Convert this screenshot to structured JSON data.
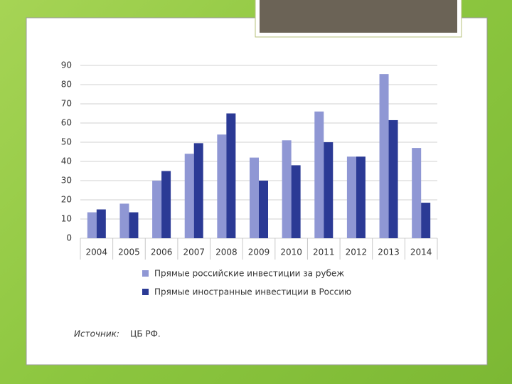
{
  "chart_data": {
    "type": "bar",
    "categories": [
      "2004",
      "2005",
      "2006",
      "2007",
      "2008",
      "2009",
      "2010",
      "2011",
      "2012",
      "2013",
      "2014"
    ],
    "series": [
      {
        "name": "Прямые российские инвестиции за рубеж",
        "color": "#8f97d4",
        "values": [
          13.5,
          18,
          30,
          44,
          54,
          42,
          51,
          66,
          42.5,
          85.5,
          47
        ]
      },
      {
        "name": "Прямые иностранные инвестиции в Россию",
        "color": "#2b3a95",
        "values": [
          15,
          13.5,
          35,
          49.5,
          65,
          30,
          38,
          50,
          42.5,
          61.5,
          18.5
        ]
      }
    ],
    "ylim": [
      0,
      90
    ],
    "yticks": [
      0,
      10,
      20,
      30,
      40,
      50,
      60,
      70,
      80,
      90
    ],
    "grid": true,
    "source_label": "Источник:",
    "source": "ЦБ РФ."
  }
}
